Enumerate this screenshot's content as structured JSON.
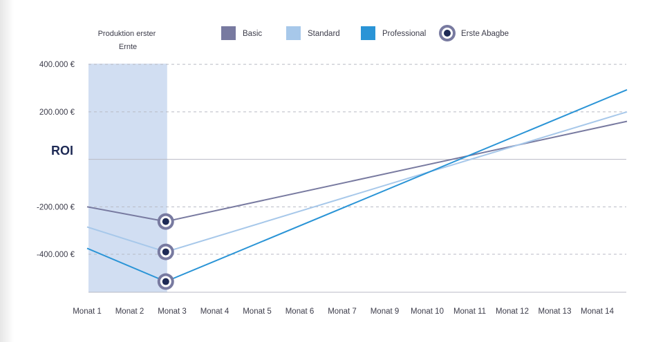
{
  "chart_data": {
    "type": "line",
    "ylabel": "ROI",
    "x_ticks": [
      "Monat 1",
      "Monat 2",
      "Monat 3",
      "Monat 4",
      "Monat 5",
      "Monat 6",
      "Monat 7",
      "Monat 9",
      "Monat 10",
      "Monat 11",
      "Monat 12",
      "Monat 13",
      "Monat 14"
    ],
    "y_ticks": [
      {
        "value": 400000,
        "label": "400.000 €"
      },
      {
        "value": 200000,
        "label": "200.000 €"
      },
      {
        "value": -200000,
        "label": "-200.000 €"
      },
      {
        "value": -400000,
        "label": "-400.000 €"
      }
    ],
    "ylim": [
      -560000,
      450000
    ],
    "x_index_range": [
      0,
      12.7
    ],
    "phase": {
      "label_line1": "Produktion erster",
      "label_line2": "Ernte",
      "x_start": 0,
      "x_end": 1.85
    },
    "series": [
      {
        "name": "Basic",
        "color": "#787aa0",
        "points": [
          [
            0,
            -200000
          ],
          [
            1.85,
            -262000
          ],
          [
            12.7,
            160000
          ]
        ],
        "marker_index": 1
      },
      {
        "name": "Standard",
        "color": "#a7c8ea",
        "points": [
          [
            0,
            -285000
          ],
          [
            1.85,
            -390000
          ],
          [
            12.7,
            200000
          ]
        ],
        "marker_index": 1
      },
      {
        "name": "Professional",
        "color": "#2a94d6",
        "points": [
          [
            0,
            -375000
          ],
          [
            1.85,
            -515000
          ],
          [
            12.7,
            293000
          ]
        ],
        "marker_index": 1
      }
    ],
    "marker_legend": "Erste Abagbe"
  },
  "colors": {
    "phase_band": "#d1def2",
    "grid": "#b8bac4",
    "marker_ring": "#787aa0",
    "marker_dot": "#1e2a55"
  }
}
